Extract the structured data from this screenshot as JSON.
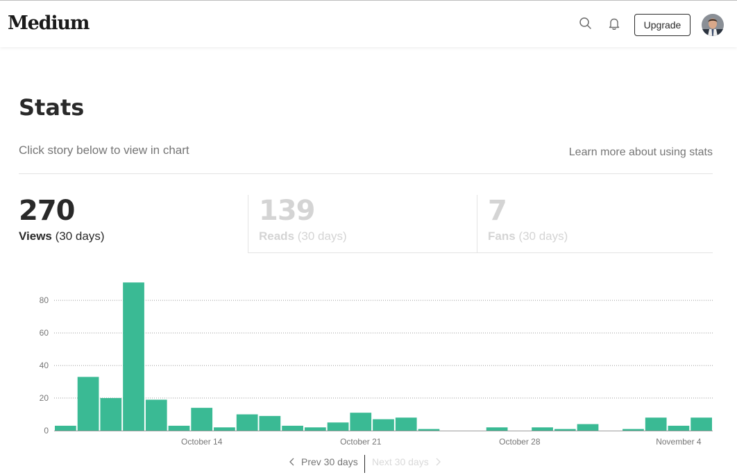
{
  "header": {
    "logo": "Medium",
    "upgrade_label": "Upgrade",
    "icons": [
      "search-icon",
      "bell-icon",
      "avatar"
    ]
  },
  "page": {
    "title": "Stats",
    "subtitle": "Click story below to view in chart",
    "learn_more": "Learn more about using stats"
  },
  "tabs": [
    {
      "value": "270",
      "label": "Views",
      "period": "(30 days)",
      "active": true
    },
    {
      "value": "139",
      "label": "Reads",
      "period": "(30 days)",
      "active": false
    },
    {
      "value": "7",
      "label": "Fans",
      "period": "(30 days)",
      "active": false
    }
  ],
  "pager": {
    "prev_label": "Prev 30 days",
    "next_label": "Next 30 days"
  },
  "colors": {
    "bar": "#3aba94",
    "text": "#292929",
    "muted": "#757575",
    "disabled": "#d4d4d4"
  },
  "chart_data": {
    "type": "bar",
    "x_tick_labels": [
      "October 14",
      "October 21",
      "October 28",
      "November 4"
    ],
    "x_tick_positions": [
      6.5,
      13.5,
      20.5,
      27.5
    ],
    "values": [
      3,
      33,
      20,
      91,
      19,
      3,
      14,
      2,
      10,
      9,
      3,
      2,
      5,
      11,
      7,
      8,
      1,
      0,
      0,
      2,
      0,
      2,
      1,
      4,
      0,
      1,
      8,
      3,
      8
    ],
    "y_ticks": [
      0,
      20,
      40,
      60,
      80
    ],
    "ylim": [
      0,
      92
    ],
    "grid": true
  }
}
